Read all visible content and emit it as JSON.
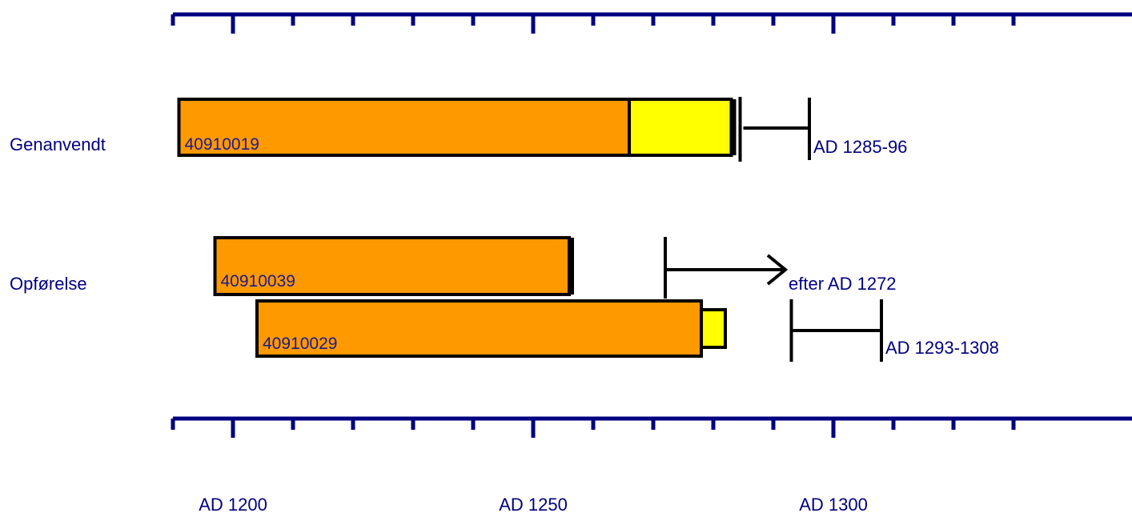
{
  "chart_data": {
    "type": "timeline-bar",
    "x_axis": {
      "range": [
        1190,
        1330
      ],
      "major_ticks": [
        1200,
        1250,
        1300
      ],
      "minor_tick_step": 10,
      "tick_labels": [
        "AD 1200",
        "AD 1250",
        "AD 1300"
      ]
    },
    "groups": [
      {
        "label": "Genanvendt"
      },
      {
        "label": "Opførelse"
      }
    ],
    "samples": [
      {
        "id": "40910019",
        "group": "Genanvendt",
        "heartwood": [
          1191,
          1266
        ],
        "sapwood": [
          1266,
          1283
        ],
        "bark_edge": true,
        "felling": {
          "type": "range",
          "from": 1285,
          "to": 1296,
          "label": "AD 1285-96"
        }
      },
      {
        "id": "40910039",
        "group": "Opførelse",
        "heartwood": [
          1197,
          1256
        ],
        "sapwood": null,
        "bark_edge": true,
        "felling": {
          "type": "after",
          "from": 1272,
          "label": "efter AD 1272"
        }
      },
      {
        "id": "40910029",
        "group": "Opførelse",
        "heartwood": [
          1204,
          1278
        ],
        "sapwood": [
          1278,
          1282
        ],
        "bark_edge": false,
        "felling": {
          "type": "range",
          "from": 1293,
          "to": 1308,
          "label": "AD 1293-1308"
        }
      }
    ],
    "colors": {
      "heartwood": "#ff9900",
      "sapwood": "#ffff00",
      "axis": "#000080",
      "outline": "#000000"
    }
  }
}
